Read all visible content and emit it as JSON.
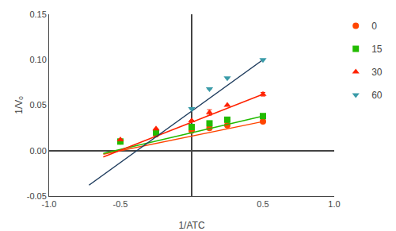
{
  "chart_data": {
    "type": "scatter",
    "xlabel": "1/ATC",
    "ylabel": "1/Vₒ",
    "xlim": [
      -1.0,
      1.0
    ],
    "ylim": [
      -0.05,
      0.15
    ],
    "xticks": [
      {
        "value": -1.0,
        "label": "-1.0"
      },
      -0.5,
      0.5,
      {
        "value": 1.0,
        "label": "1.0"
      }
    ],
    "yticks": [
      -0.05,
      {
        "value": 0.0,
        "label": "0.00"
      },
      0.05,
      {
        "value": 0.1,
        "label": "0.10"
      },
      0.15
    ],
    "grid": false,
    "legend": "right",
    "series": [
      {
        "name": "0",
        "color": "#FF4500",
        "marker": "circle",
        "x": [
          -0.5,
          -0.25,
          0.0,
          0.125,
          0.25,
          0.5
        ],
        "values": [
          0.01,
          0.018,
          0.022,
          0.025,
          0.028,
          0.032
        ],
        "error": [
          0.0,
          0.0,
          0.0,
          0.0,
          0.0,
          0.0
        ],
        "fit": {
          "color": "#FF4500",
          "x": [
            -0.62,
            0.5
          ],
          "values": [
            -0.004,
            0.032
          ]
        }
      },
      {
        "name": "15",
        "color": "#22BB00",
        "marker": "square",
        "x": [
          -0.5,
          -0.25,
          0.0,
          0.125,
          0.25,
          0.5
        ],
        "values": [
          0.01,
          0.02,
          0.026,
          0.03,
          0.034,
          0.038
        ],
        "error": [
          0.0,
          0.0,
          0.0,
          0.0,
          0.0,
          0.0
        ],
        "fit": {
          "color": "#22BB00",
          "x": [
            -0.62,
            0.5
          ],
          "values": [
            -0.003,
            0.038
          ]
        }
      },
      {
        "name": "30",
        "color": "#FF2200",
        "marker": "triangle-up",
        "x": [
          -0.5,
          -0.25,
          0.0,
          0.125,
          0.25,
          0.5
        ],
        "values": [
          0.012,
          0.024,
          0.033,
          0.042,
          0.05,
          0.062
        ],
        "error": [
          0.0,
          0.0,
          0.0,
          0.003,
          0.0,
          0.002
        ],
        "fit": {
          "color": "#FF2200",
          "x": [
            -0.62,
            0.5
          ],
          "values": [
            -0.007,
            0.062
          ]
        }
      },
      {
        "name": "60",
        "color": "#3A9BA8",
        "marker": "triangle-down",
        "x": [
          0.0,
          0.125,
          0.25,
          0.5
        ],
        "values": [
          0.046,
          0.068,
          0.08,
          0.1
        ],
        "error": [
          0.0,
          0.0,
          0.0,
          0.0
        ],
        "fit": {
          "color": "#1C3A5C",
          "x": [
            -0.72,
            0.5
          ],
          "values": [
            -0.038,
            0.1
          ]
        }
      }
    ]
  }
}
